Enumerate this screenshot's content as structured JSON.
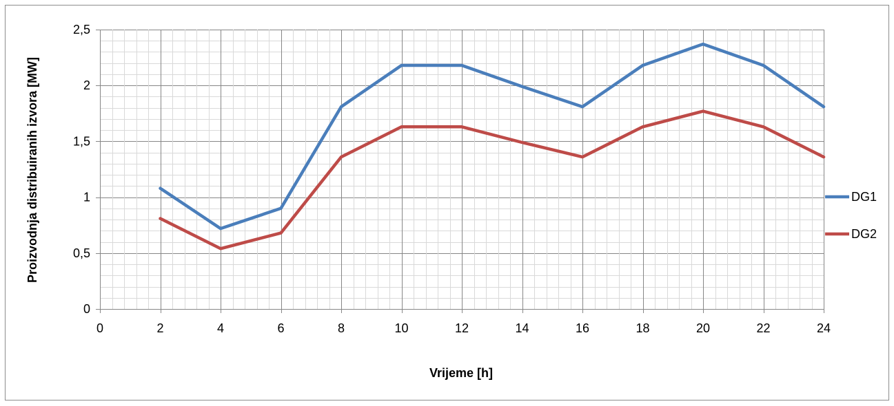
{
  "chart_data": {
    "type": "line",
    "title": "",
    "xlabel": "Vrijeme [h]",
    "ylabel": "Proizvodnja distribuiranih izvora [MW]",
    "xlim": [
      0,
      24
    ],
    "ylim": [
      0,
      2.5
    ],
    "x_ticks": [
      "0",
      "2",
      "4",
      "6",
      "8",
      "10",
      "12",
      "14",
      "16",
      "18",
      "20",
      "22",
      "24"
    ],
    "y_ticks": [
      "0",
      "0,5",
      "1",
      "1,5",
      "2",
      "2,5"
    ],
    "grid": true,
    "legend_position": "right",
    "x": [
      2,
      4,
      6,
      8,
      10,
      12,
      14,
      16,
      18,
      20,
      22,
      24
    ],
    "series": [
      {
        "name": "DG1",
        "color": "#4a7ebb",
        "values": [
          1.08,
          0.72,
          0.9,
          1.81,
          2.18,
          2.18,
          1.99,
          1.81,
          2.18,
          2.37,
          2.18,
          1.81
        ]
      },
      {
        "name": "DG2",
        "color": "#be4b48",
        "values": [
          0.81,
          0.54,
          0.68,
          1.36,
          1.63,
          1.63,
          1.49,
          1.36,
          1.63,
          1.77,
          1.63,
          1.36
        ]
      }
    ]
  }
}
